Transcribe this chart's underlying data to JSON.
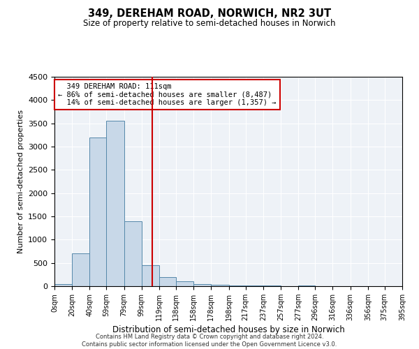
{
  "title": "349, DEREHAM ROAD, NORWICH, NR2 3UT",
  "subtitle": "Size of property relative to semi-detached houses in Norwich",
  "xlabel": "Distribution of semi-detached houses by size in Norwich",
  "ylabel": "Number of semi-detached properties",
  "property_size": 111,
  "property_label": "349 DEREHAM ROAD: 111sqm",
  "pct_smaller": 86,
  "count_smaller": 8487,
  "pct_larger": 14,
  "count_larger": 1357,
  "bin_edges": [
    0,
    20,
    40,
    59,
    79,
    99,
    119,
    138,
    158,
    178,
    198,
    217,
    237,
    257,
    277,
    296,
    316,
    336,
    356,
    375,
    395
  ],
  "bar_heights": [
    50,
    700,
    3200,
    3550,
    1400,
    450,
    200,
    100,
    50,
    30,
    20,
    10,
    10,
    0,
    10,
    0,
    0,
    0,
    0,
    0
  ],
  "bar_color": "#c8d8e8",
  "bar_edge_color": "#5588aa",
  "vline_x": 111,
  "vline_color": "#cc0000",
  "annotation_box_color": "#cc0000",
  "ylim": [
    0,
    4500
  ],
  "yticks": [
    0,
    500,
    1000,
    1500,
    2000,
    2500,
    3000,
    3500,
    4000,
    4500
  ],
  "background_color": "#eef2f7",
  "grid_color": "#ffffff",
  "footnote1": "Contains HM Land Registry data © Crown copyright and database right 2024.",
  "footnote2": "Contains public sector information licensed under the Open Government Licence v3.0."
}
